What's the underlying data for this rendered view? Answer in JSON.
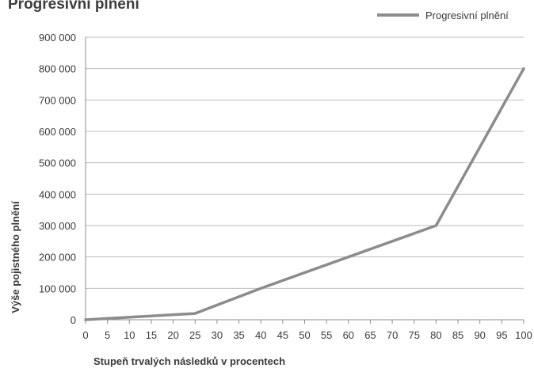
{
  "chart_data": {
    "type": "line",
    "title": "Progresivní plnění",
    "xlabel": "Stupeň trvalých následků v procentech",
    "ylabel": "Výše pojistného plnění",
    "xlim": [
      0,
      100
    ],
    "ylim": [
      0,
      900000
    ],
    "x_ticks": [
      "0",
      "5",
      "10",
      "15",
      "20",
      "25",
      "30",
      "35",
      "40",
      "45",
      "50",
      "55",
      "60",
      "65",
      "70",
      "75",
      "80",
      "85",
      "90",
      "95",
      "100"
    ],
    "y_ticks": [
      "0",
      "100 000",
      "200 000",
      "300 000",
      "400 000",
      "500 000",
      "600 000",
      "700 000",
      "800 000",
      "900 000"
    ],
    "grid": true,
    "legend_position": "top-right",
    "series": [
      {
        "name": "Progresivní plnění",
        "color": "#8c8c8c",
        "x": [
          0,
          25,
          40,
          80,
          100
        ],
        "y": [
          0,
          20000,
          100000,
          300000,
          800000
        ]
      }
    ]
  }
}
